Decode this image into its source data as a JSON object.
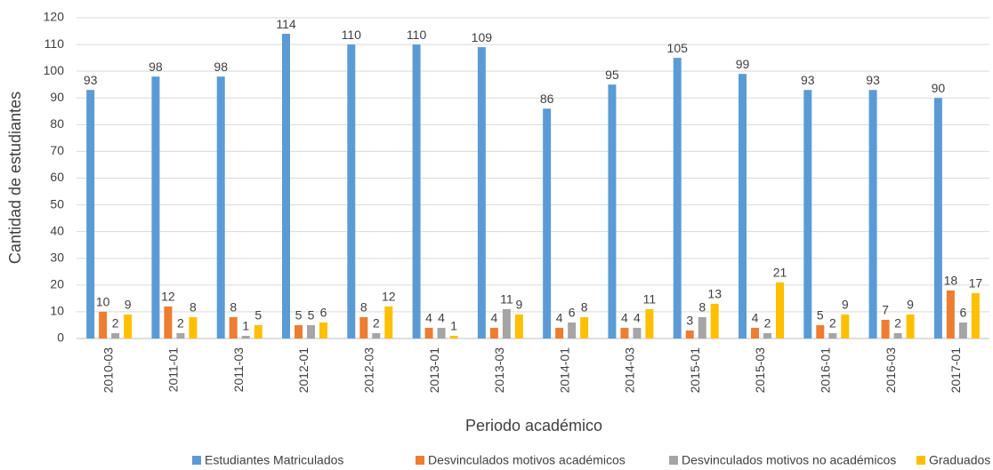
{
  "chart_data": {
    "type": "bar",
    "x_label": "Periodo académico",
    "y_label": "Cantidad de estudiantes",
    "categories": [
      "2010-03",
      "2011-01",
      "2011-03",
      "2012-01",
      "2012-03",
      "2013-01",
      "2013-03",
      "2014-01",
      "2014-03",
      "2015-01",
      "2015-03",
      "2016-01",
      "2016-03",
      "2017-01"
    ],
    "series": [
      {
        "name": "Estudiantes Matriculados",
        "color": "#5b9bd5",
        "values": [
          93,
          98,
          98,
          114,
          110,
          110,
          109,
          86,
          95,
          105,
          99,
          93,
          93,
          90
        ]
      },
      {
        "name": "Desvinculados motivos académicos",
        "color": "#ed7d31",
        "values": [
          10,
          12,
          8,
          5,
          8,
          4,
          4,
          4,
          4,
          3,
          4,
          5,
          7,
          18
        ]
      },
      {
        "name": "Desvinculados motivos no académicos",
        "color": "#a5a5a5",
        "values": [
          2,
          2,
          1,
          5,
          2,
          4,
          11,
          6,
          4,
          8,
          2,
          2,
          2,
          6
        ]
      },
      {
        "name": "Graduados",
        "color": "#ffc000",
        "values": [
          9,
          8,
          5,
          6,
          12,
          1,
          9,
          8,
          11,
          13,
          21,
          9,
          9,
          17
        ]
      }
    ],
    "ylim": [
      0,
      120
    ],
    "yticks": [
      0,
      10,
      20,
      30,
      40,
      50,
      60,
      70,
      80,
      90,
      100,
      110,
      120
    ],
    "grid": true,
    "legend": "bottom"
  }
}
